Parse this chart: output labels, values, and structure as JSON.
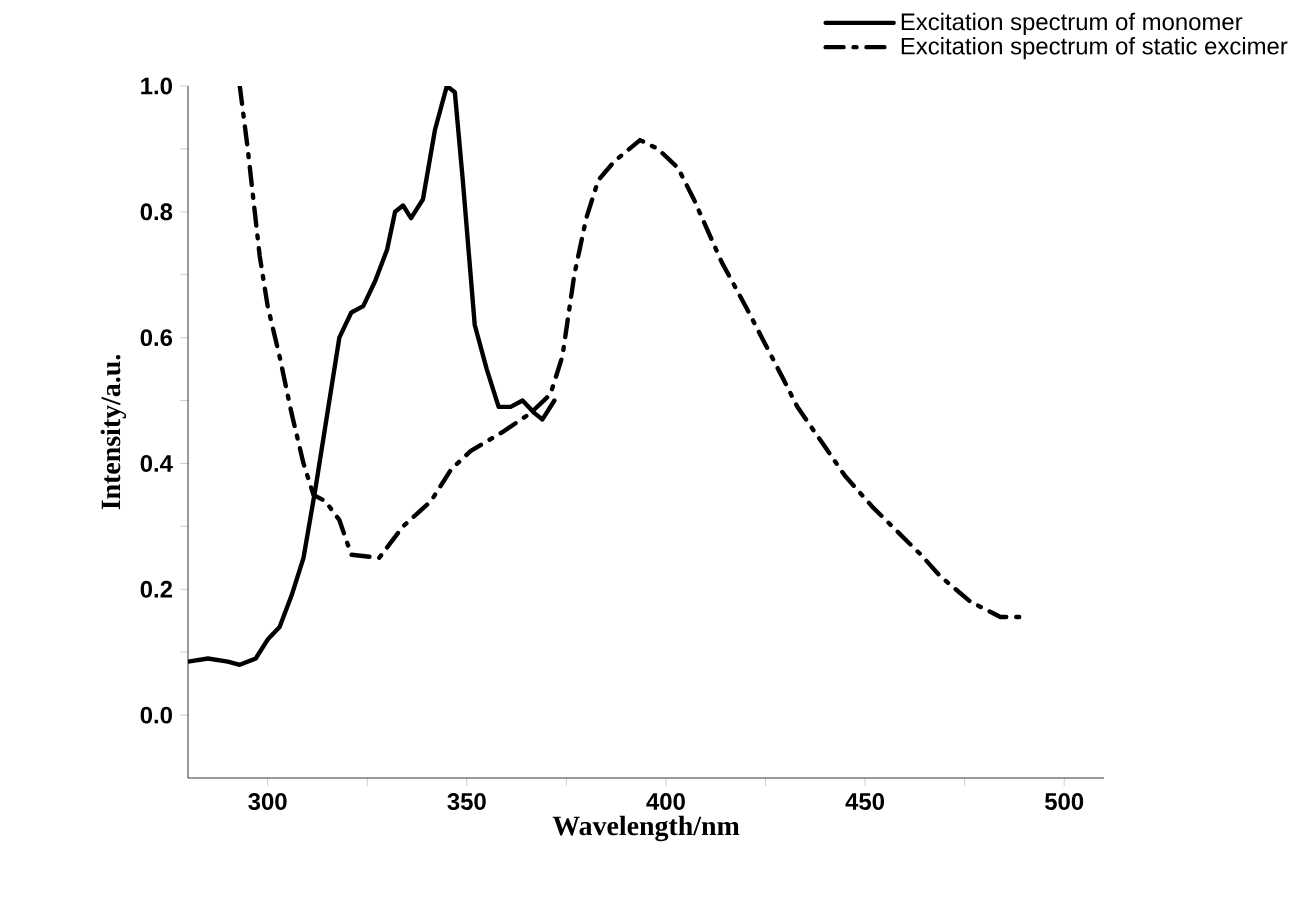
{
  "chart_data": {
    "type": "line",
    "xlabel": "Wavelength/nm",
    "ylabel": "Intensity/a.u.",
    "xlim": [
      280,
      510
    ],
    "ylim": [
      -0.1,
      1.0
    ],
    "xticks": [
      300,
      {
        "value": 325,
        "label": null
      },
      350,
      {
        "value": 375,
        "label": null
      },
      400,
      {
        "value": 425,
        "label": null
      },
      450,
      {
        "value": 475,
        "label": null
      },
      500
    ],
    "yticks": [
      {
        "value": 0.0,
        "label": "0.0"
      },
      {
        "value": 0.1,
        "label": null
      },
      0.2,
      {
        "value": 0.3,
        "label": null
      },
      0.4,
      {
        "value": 0.5,
        "label": null
      },
      0.6,
      {
        "value": 0.7,
        "label": null
      },
      0.8,
      {
        "value": 0.9,
        "label": null
      },
      {
        "value": 1.0,
        "label": "1.0"
      }
    ],
    "grid": false,
    "legend": "top right",
    "marker": "none",
    "series": [
      {
        "name": "Excitation spectrum of monomer",
        "color": "#000000",
        "line_style": "solid",
        "x": [
          280,
          285,
          290,
          293,
          297,
          300,
          303,
          306,
          309,
          312,
          315,
          318,
          321,
          324,
          327,
          330,
          332,
          334,
          336,
          339,
          342,
          345,
          347,
          349,
          352,
          355,
          358,
          361,
          364,
          367,
          369,
          372
        ],
        "values": [
          0.085,
          0.09,
          0.085,
          0.08,
          0.09,
          0.12,
          0.14,
          0.19,
          0.25,
          0.36,
          0.48,
          0.6,
          0.64,
          0.65,
          0.69,
          0.74,
          0.8,
          0.81,
          0.79,
          0.82,
          0.93,
          1.0,
          0.99,
          0.85,
          0.62,
          0.55,
          0.49,
          0.49,
          0.5,
          0.48,
          0.47,
          0.5
        ]
      },
      {
        "name": "Excitation spectrum of static excimer",
        "color": "#000000",
        "line_style": "dashdot",
        "x": [
          293,
          295,
          298,
          300,
          303,
          306,
          309,
          311.5,
          314.5,
          318,
          321,
          328,
          334,
          341,
          346,
          351,
          359,
          366,
          371,
          374,
          377,
          380,
          383,
          387,
          393.5,
          398,
          403,
          407,
          414,
          420,
          429,
          433,
          445,
          452,
          464,
          469,
          476.5,
          484,
          490.5
        ],
        "values": [
          1.0,
          0.9,
          0.73,
          0.65,
          0.57,
          0.48,
          0.4,
          0.35,
          0.34,
          0.31,
          0.255,
          0.25,
          0.3,
          0.34,
          0.39,
          0.42,
          0.45,
          0.48,
          0.51,
          0.57,
          0.7,
          0.79,
          0.85,
          0.88,
          0.914,
          0.9,
          0.87,
          0.82,
          0.72,
          0.65,
          0.54,
          0.49,
          0.38,
          0.33,
          0.255,
          0.22,
          0.18,
          0.156,
          0.156
        ]
      }
    ]
  }
}
